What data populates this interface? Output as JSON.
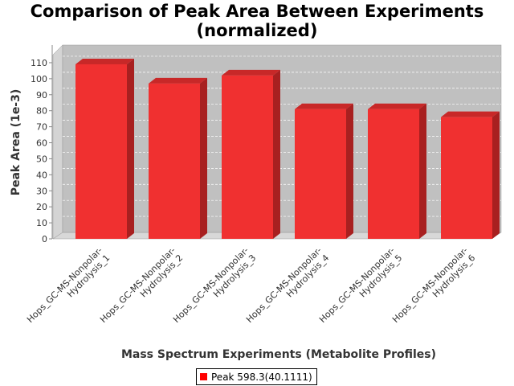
{
  "chart_data": {
    "type": "bar",
    "title": "Comparison of Peak Area Between Experiments (normalized)",
    "title_lines": [
      "Comparison of Peak Area Between Experiments",
      "(normalized)"
    ],
    "xlabel": "Mass Spectrum Experiments (Metabolite Profiles)",
    "ylabel": "Peak Area (1e-3)",
    "ylim": [
      0,
      115
    ],
    "yticks": [
      0,
      10,
      20,
      30,
      40,
      50,
      60,
      70,
      80,
      90,
      100,
      110
    ],
    "categories": [
      "Hops_GC-MS-Nonpolar-Hydrolysis_1",
      "Hops_GC-MS-Nonpolar-Hydrolysis_2",
      "Hops_GC-MS-Nonpolar-Hydrolysis_3",
      "Hops_GC-MS-Nonpolar-Hydrolysis_4",
      "Hops_GC-MS-Nonpolar-Hydrolysis_5",
      "Hops_GC-MS-Nonpolar-Hydrolysis_6"
    ],
    "category_lines": [
      [
        "Hops_GC-MS-Nonpolar-",
        "Hydrolysis_1"
      ],
      [
        "Hops_GC-MS-Nonpolar-",
        "Hydrolysis_2"
      ],
      [
        "Hops_GC-MS-Nonpolar-",
        "Hydrolysis_3"
      ],
      [
        "Hops_GC-MS-Nonpolar-",
        "Hydrolysis_4"
      ],
      [
        "Hops_GC-MS-Nonpolar-",
        "Hydrolysis_5"
      ],
      [
        "Hops_GC-MS-Nonpolar-",
        "Hydrolysis_6"
      ]
    ],
    "series": [
      {
        "name": "Peak 598.3(40.1111)",
        "values": [
          109,
          97,
          102,
          81,
          81,
          76
        ]
      }
    ],
    "grid": true,
    "legend_position": "bottom",
    "colors": {
      "bar_front": "#f03030",
      "bar_top": "#c82828",
      "bar_side": "#a82020",
      "plot_back": "#c0c0c0",
      "plot_wall": "#d4d4d4",
      "legend_swatch": "#ff0000"
    }
  }
}
